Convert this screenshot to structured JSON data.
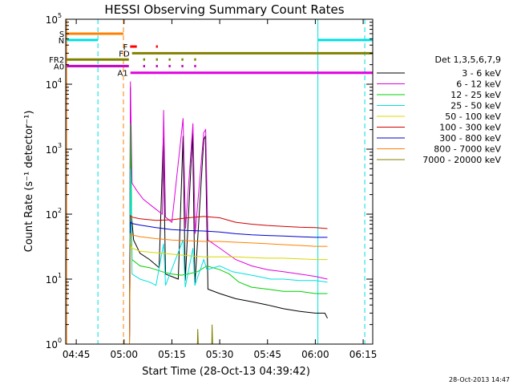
{
  "chart_data": {
    "type": "line",
    "title": "HESSI Observing Summary Count Rates",
    "xlabel": "Start Time (28-Oct-13 04:39:42)",
    "ylabel": "Count Rate (s⁻¹ detector⁻¹)",
    "footer": "28-Oct-2013 14:47",
    "yscale": "log",
    "ylim": [
      1,
      100000
    ],
    "xlim_min": [
      281.7,
      378.0
    ],
    "x_ticks": [
      {
        "v": 285,
        "label": "04:45"
      },
      {
        "v": 300,
        "label": "05:00"
      },
      {
        "v": 315,
        "label": "05:15"
      },
      {
        "v": 330,
        "label": "05:30"
      },
      {
        "v": 345,
        "label": "05:45"
      },
      {
        "v": 360,
        "label": "06:00"
      },
      {
        "v": 375,
        "label": "06:15"
      }
    ],
    "y_ticks": [
      {
        "v": 1,
        "base": "10",
        "exp": "0"
      },
      {
        "v": 10,
        "base": "10",
        "exp": "1"
      },
      {
        "v": 100,
        "base": "10",
        "exp": "2"
      },
      {
        "v": 1000,
        "base": "10",
        "exp": "3"
      },
      {
        "v": 10000,
        "base": "10",
        "exp": "4"
      },
      {
        "v": 100000,
        "base": "10",
        "exp": "5"
      }
    ],
    "legend": {
      "title": "Det 1,3,5,6,7,9",
      "entries": [
        {
          "label": "3 - 6 keV",
          "color": "#000000"
        },
        {
          "label": "6 - 12 keV",
          "color": "#e000e0"
        },
        {
          "label": "12 - 25 keV",
          "color": "#00d000"
        },
        {
          "label": "25 - 50 keV",
          "color": "#00e0e0"
        },
        {
          "label": "50 - 100 keV",
          "color": "#d8d800"
        },
        {
          "label": "100 - 300 keV",
          "color": "#d00000"
        },
        {
          "label": "300 - 800 keV",
          "color": "#0000d0"
        },
        {
          "label": "800 - 7000 keV",
          "color": "#ff8000"
        },
        {
          "label": "7000 - 20000 keV",
          "color": "#808000"
        }
      ]
    },
    "series": [
      {
        "name": "3 - 6 keV",
        "color": "#000000",
        "points": [
          [
            301.7,
            1.0
          ],
          [
            302.0,
            9000
          ],
          [
            302.3,
            100
          ],
          [
            303,
            40
          ],
          [
            305,
            25
          ],
          [
            308,
            20
          ],
          [
            311,
            15
          ],
          [
            312.3,
            1500
          ],
          [
            313,
            12
          ],
          [
            317,
            10
          ],
          [
            318.5,
            1600
          ],
          [
            319.2,
            9.5
          ],
          [
            321.5,
            1800
          ],
          [
            322.2,
            8
          ],
          [
            325,
            1400
          ],
          [
            325.5,
            1600
          ],
          [
            326.3,
            7
          ],
          [
            330,
            6
          ],
          [
            335,
            5
          ],
          [
            340,
            4.5
          ],
          [
            345,
            4
          ],
          [
            350,
            3.5
          ],
          [
            355,
            3.2
          ],
          [
            360,
            3
          ],
          [
            363,
            3.0
          ],
          [
            363.8,
            2.5
          ]
        ]
      },
      {
        "name": "6 - 12 keV",
        "color": "#e000e0",
        "points": [
          [
            301.7,
            1.0
          ],
          [
            302.0,
            11000
          ],
          [
            302.5,
            300
          ],
          [
            304,
            230
          ],
          [
            306,
            170
          ],
          [
            309,
            130
          ],
          [
            312,
            100
          ],
          [
            312.4,
            4000
          ],
          [
            313,
            90
          ],
          [
            315,
            75
          ],
          [
            318.5,
            3000
          ],
          [
            319.3,
            60
          ],
          [
            321.6,
            2500
          ],
          [
            322.3,
            50
          ],
          [
            325,
            1800
          ],
          [
            325.6,
            2000
          ],
          [
            326.3,
            40
          ],
          [
            330,
            30
          ],
          [
            335,
            20
          ],
          [
            340,
            16
          ],
          [
            345,
            14
          ],
          [
            350,
            13
          ],
          [
            355,
            12
          ],
          [
            360,
            11
          ],
          [
            363.8,
            10
          ]
        ]
      },
      {
        "name": "12 - 25 keV",
        "color": "#00d000",
        "points": [
          [
            301.7,
            1.0
          ],
          [
            302.0,
            2500
          ],
          [
            302.5,
            20
          ],
          [
            305,
            16
          ],
          [
            308,
            15
          ],
          [
            312,
            13
          ],
          [
            315,
            12
          ],
          [
            318,
            11.5
          ],
          [
            320,
            12
          ],
          [
            323,
            13
          ],
          [
            326,
            16
          ],
          [
            330,
            14
          ],
          [
            333,
            12
          ],
          [
            336,
            9
          ],
          [
            340,
            7.5
          ],
          [
            345,
            7
          ],
          [
            350,
            6.5
          ],
          [
            355,
            6.5
          ],
          [
            360,
            6
          ],
          [
            363.8,
            6
          ]
        ]
      },
      {
        "name": "25 - 50 keV",
        "color": "#00e0e0",
        "points": [
          [
            301.7,
            1.0
          ],
          [
            302.0,
            500
          ],
          [
            302.5,
            12
          ],
          [
            305,
            10
          ],
          [
            308,
            9
          ],
          [
            310,
            8
          ],
          [
            312.4,
            35
          ],
          [
            313,
            8
          ],
          [
            318.5,
            40
          ],
          [
            319.2,
            7.5
          ],
          [
            321.6,
            30
          ],
          [
            322.2,
            8
          ],
          [
            325,
            20
          ],
          [
            326,
            14
          ],
          [
            330,
            16
          ],
          [
            334,
            13
          ],
          [
            338,
            12
          ],
          [
            342,
            11
          ],
          [
            346,
            10
          ],
          [
            350,
            10
          ],
          [
            355,
            9.5
          ],
          [
            360,
            9.5
          ],
          [
            363.8,
            9
          ]
        ]
      },
      {
        "name": "50 - 100 keV",
        "color": "#d8d800",
        "points": [
          [
            301.7,
            1.0
          ],
          [
            302.0,
            35
          ],
          [
            302.5,
            30
          ],
          [
            305,
            27
          ],
          [
            308,
            26
          ],
          [
            312,
            25
          ],
          [
            316,
            24
          ],
          [
            320,
            23
          ],
          [
            325,
            22
          ],
          [
            330,
            22
          ],
          [
            335,
            22
          ],
          [
            340,
            21.5
          ],
          [
            345,
            21
          ],
          [
            350,
            21
          ],
          [
            355,
            20.5
          ],
          [
            360,
            20
          ],
          [
            363.8,
            20
          ]
        ]
      },
      {
        "name": "100 - 300 keV",
        "color": "#d00000",
        "points": [
          [
            301.7,
            1.0
          ],
          [
            302.0,
            95
          ],
          [
            302.5,
            90
          ],
          [
            305,
            85
          ],
          [
            310,
            80
          ],
          [
            315,
            82
          ],
          [
            320,
            88
          ],
          [
            325,
            92
          ],
          [
            330,
            88
          ],
          [
            335,
            75
          ],
          [
            340,
            70
          ],
          [
            345,
            67
          ],
          [
            350,
            65
          ],
          [
            355,
            63
          ],
          [
            360,
            62
          ],
          [
            363.8,
            60
          ]
        ]
      },
      {
        "name": "300 - 800 keV",
        "color": "#0000d0",
        "points": [
          [
            301.7,
            1.0
          ],
          [
            302.0,
            75
          ],
          [
            302.5,
            72
          ],
          [
            305,
            68
          ],
          [
            310,
            62
          ],
          [
            315,
            58
          ],
          [
            320,
            56
          ],
          [
            325,
            55
          ],
          [
            330,
            53
          ],
          [
            335,
            50
          ],
          [
            340,
            48
          ],
          [
            345,
            47
          ],
          [
            350,
            46
          ],
          [
            355,
            45
          ],
          [
            360,
            44
          ],
          [
            363.8,
            44
          ]
        ]
      },
      {
        "name": "800 - 7000 keV",
        "color": "#ff8000",
        "points": [
          [
            301.7,
            1.0
          ],
          [
            302.0,
            50
          ],
          [
            302.5,
            48
          ],
          [
            305,
            45
          ],
          [
            310,
            42
          ],
          [
            315,
            40
          ],
          [
            320,
            39
          ],
          [
            325,
            38
          ],
          [
            330,
            38
          ],
          [
            335,
            37
          ],
          [
            340,
            36
          ],
          [
            345,
            35
          ],
          [
            350,
            34
          ],
          [
            355,
            33
          ],
          [
            360,
            32
          ],
          [
            363.8,
            32
          ]
        ]
      },
      {
        "name": "7000 - 20000 keV",
        "color": "#808000",
        "points": [
          [
            323.0,
            1.0
          ],
          [
            323.1,
            1.7
          ],
          [
            323.3,
            1.0
          ],
          [
            327.5,
            1.0
          ],
          [
            327.6,
            2.0
          ],
          [
            327.8,
            1.0
          ]
        ]
      }
    ],
    "vertical_lines": [
      {
        "x": 282.0,
        "color": "#ff8000",
        "dash": false
      },
      {
        "x": 291.8,
        "color": "#00e0e0",
        "dash": true
      },
      {
        "x": 299.8,
        "color": "#ff8000",
        "dash": true
      },
      {
        "x": 360.8,
        "color": "#00e0e0",
        "dash": false
      },
      {
        "x": 375.5,
        "color": "#00e0e0",
        "dash": true
      }
    ],
    "flag_bars": [
      {
        "label": "S",
        "color": "#ff8000",
        "y": 60000,
        "segments": [
          [
            282.0,
            299.8
          ]
        ]
      },
      {
        "label": "N",
        "color": "#00e0e0",
        "y": 48000,
        "segments": [
          [
            282.0,
            291.8
          ],
          [
            360.8,
            378.0
          ]
        ]
      },
      {
        "label": "F",
        "color": "#ff0000",
        "y": 38000,
        "segments": [
          [
            301.9,
            304.0
          ],
          [
            310.0,
            310.6
          ]
        ]
      },
      {
        "label": "FD",
        "color": "#808000",
        "y": 30000,
        "segments": [
          [
            302.5,
            378.0
          ]
        ]
      },
      {
        "label": "FR2",
        "color": "#808000",
        "y": 24000,
        "segments": [
          [
            282.0,
            301.5
          ],
          [
            306.0,
            306.6
          ],
          [
            310.0,
            310.6
          ],
          [
            314.0,
            314.6
          ],
          [
            318.0,
            318.6
          ],
          [
            322.0,
            322.6
          ]
        ]
      },
      {
        "label": "A0",
        "color": "#c000c0",
        "y": 19000,
        "segments": [
          [
            282.0,
            301.5
          ],
          [
            306.0,
            306.6
          ],
          [
            310.0,
            310.6
          ],
          [
            314.0,
            314.6
          ],
          [
            318.0,
            318.6
          ],
          [
            322.0,
            322.6
          ]
        ]
      },
      {
        "label": "A1",
        "color": "#e000e0",
        "y": 15000,
        "segments": [
          [
            302.0,
            378.0
          ]
        ]
      }
    ]
  }
}
